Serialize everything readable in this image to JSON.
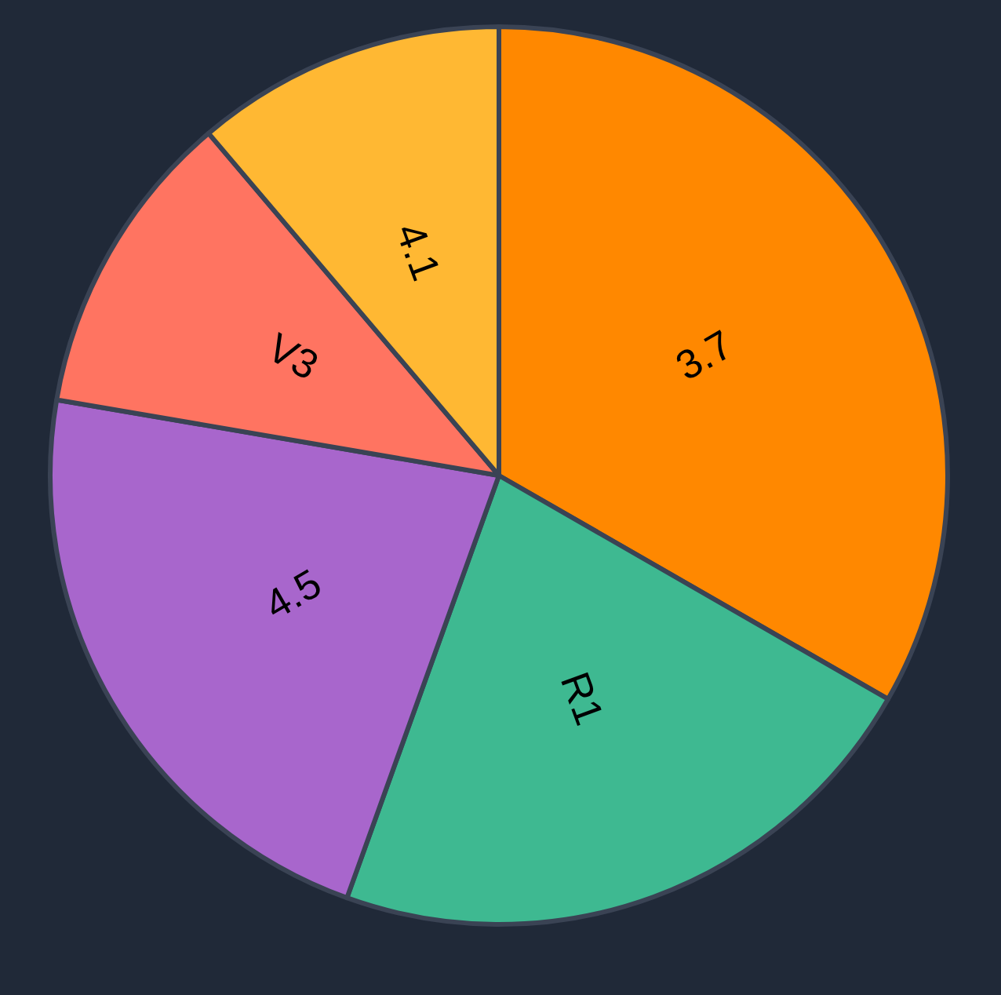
{
  "chart_data": {
    "type": "pie",
    "categories": [
      "3.7",
      "R1",
      "4.5",
      "V3",
      "4.1"
    ],
    "values": [
      33.3,
      22.2,
      22.2,
      11.1,
      11.2
    ],
    "colors": [
      "#ff8800",
      "#3eb991",
      "#a866cc",
      "#ff7461",
      "#ffb833"
    ]
  }
}
